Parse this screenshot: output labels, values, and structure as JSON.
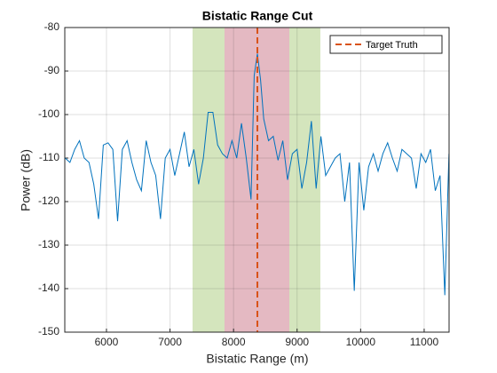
{
  "chart_data": {
    "type": "line",
    "title": "Bistatic Range Cut",
    "xlabel": "Bistatic Range (m)",
    "ylabel": "Power (dB)",
    "x": [
      5350,
      5425,
      5500,
      5575,
      5650,
      5725,
      5800,
      5875,
      5950,
      6025,
      6100,
      6175,
      6250,
      6325,
      6400,
      6475,
      6550,
      6625,
      6700,
      6775,
      6850,
      6925,
      7000,
      7075,
      7150,
      7225,
      7300,
      7375,
      7450,
      7525,
      7600,
      7675,
      7750,
      7825,
      7900,
      7975,
      8050,
      8125,
      8200,
      8275,
      8325,
      8375,
      8425,
      8475,
      8550,
      8625,
      8700,
      8775,
      8850,
      8925,
      9000,
      9075,
      9150,
      9225,
      9300,
      9375,
      9450,
      9525,
      9600,
      9675,
      9750,
      9825,
      9900,
      9975,
      10050,
      10125,
      10200,
      10275,
      10350,
      10425,
      10500,
      10575,
      10650,
      10725,
      10800,
      10875,
      10950,
      11025,
      11100,
      11175,
      11250,
      11325,
      11390
    ],
    "values": [
      -110,
      -111,
      -108,
      -106,
      -110,
      -111,
      -116,
      -124,
      -107,
      -106.5,
      -108,
      -124.5,
      -108,
      -106,
      -111,
      -115,
      -117.5,
      -106,
      -111,
      -114,
      -124,
      -110,
      -108,
      -114,
      -109,
      -104,
      -112,
      -108,
      -116,
      -110,
      -99.5,
      -99.5,
      -107,
      -109,
      -110,
      -106,
      -110,
      -102,
      -110,
      -119.5,
      -91,
      -86,
      -92,
      -101,
      -106,
      -105,
      -110.5,
      -106,
      -115,
      -109,
      -108,
      -117,
      -111,
      -101.5,
      -117,
      -105,
      -114,
      -112,
      -110,
      -109,
      -120,
      -111,
      -140.5,
      -111,
      -122,
      -112,
      -109,
      -113,
      -109,
      -106.5,
      -110,
      -113,
      -108,
      -109,
      -110,
      -117,
      -109,
      -111,
      -108,
      -117.5,
      -114,
      -141.5,
      -109
    ],
    "color": "#0072bd",
    "bands": [
      {
        "range": [
          7355,
          9366
        ],
        "color": "#d4e5bd"
      },
      {
        "range": [
          7858,
          8878
        ],
        "color": "#e4b9c2"
      }
    ],
    "target_truth": {
      "name": "Target Truth",
      "x": 8375,
      "color": "#d95319"
    },
    "xlim": [
      5344,
      11392
    ],
    "ylim": [
      -150,
      -80
    ],
    "xticks": [
      6000,
      7000,
      8000,
      9000,
      10000,
      11000
    ],
    "yticks": [
      -150,
      -140,
      -130,
      -120,
      -110,
      -100,
      -90,
      -80
    ],
    "grid": true,
    "legend_position": "upper right"
  }
}
